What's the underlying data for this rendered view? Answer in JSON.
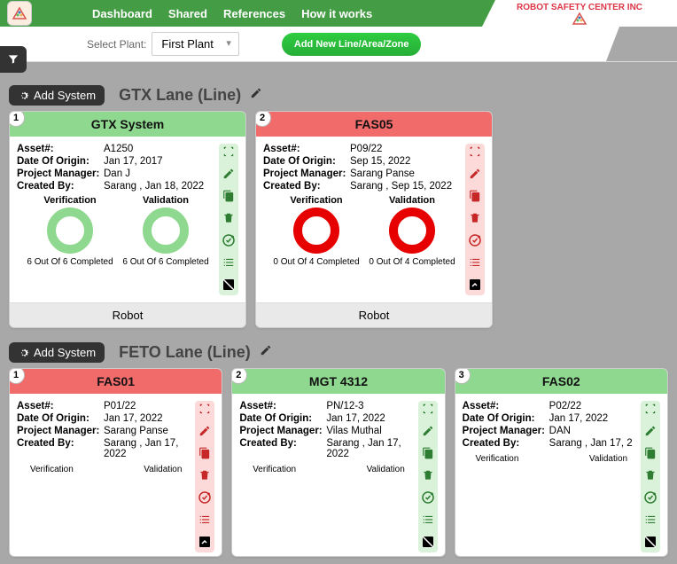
{
  "nav": {
    "items": [
      "Dashboard",
      "Shared",
      "References",
      "How it works"
    ],
    "company": "ROBOT SAFETY CENTER INC"
  },
  "sub": {
    "select_label": "Select Plant:",
    "plant": "First Plant",
    "add_btn": "Add New Line/Area/Zone"
  },
  "add_system": "Add System",
  "labels": {
    "asset": "Asset#:",
    "origin": "Date Of Origin:",
    "pm": "Project Manager:",
    "created": "Created By:",
    "ver": "Verification",
    "val": "Validation"
  },
  "lanes": [
    {
      "title": "GTX Lane (Line)",
      "cards": [
        {
          "num": "1",
          "color": "green",
          "title": "GTX System",
          "asset": "A1250",
          "origin": "Jan 17, 2017",
          "pm": "Dan J",
          "created": "Sarang , Jan 18, 2022",
          "ver": "6 Out Of 6 Completed",
          "val": "6 Out Of 6 Completed",
          "footer": "Robot"
        },
        {
          "num": "2",
          "color": "red",
          "title": "FAS05",
          "asset": "P09/22",
          "origin": "Sep 15, 2022",
          "pm": "Sarang Panse",
          "created": "Sarang , Sep 15, 2022",
          "ver": "0 Out Of 4 Completed",
          "val": "0 Out Of 4 Completed",
          "footer": "Robot"
        }
      ]
    },
    {
      "title": "FETO Lane (Line)",
      "cards": [
        {
          "num": "1",
          "color": "red",
          "title": "FAS01",
          "asset": "P01/22",
          "origin": "Jan 17, 2022",
          "pm": "Sarang Panse",
          "created": "Sarang , Jan 17, 2022",
          "ver": "Verification",
          "val": "Validation",
          "footer": ""
        },
        {
          "num": "2",
          "color": "green",
          "title": "MGT 4312",
          "asset": "PN/12-3",
          "origin": "Jan 17, 2022",
          "pm": "Vilas Muthal",
          "created": "Sarang , Jan 17, 2022",
          "ver": "Verification",
          "val": "Validation",
          "footer": ""
        },
        {
          "num": "3",
          "color": "green",
          "title": "FAS02",
          "asset": "P02/22",
          "origin": "Jan 17, 2022",
          "pm": "DAN",
          "created": "Sarang , Jan 17, 2",
          "ver": "Verification",
          "val": "Validation",
          "footer": ""
        }
      ]
    }
  ]
}
